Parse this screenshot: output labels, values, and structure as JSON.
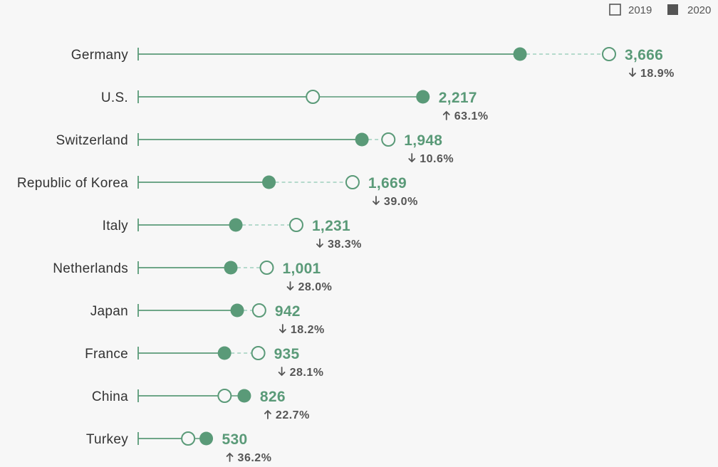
{
  "colors": {
    "accent": "#5a9a78",
    "dashed_line": "#9fd0bd",
    "legend_square_2020": "#555555",
    "background": "#f7f7f7"
  },
  "legend": [
    {
      "label": "2019",
      "symbol": "hollow-square"
    },
    {
      "label": "2020",
      "symbol": "filled-square"
    }
  ],
  "chart_data": {
    "type": "dumbbell",
    "series": [
      {
        "name": "2019",
        "marker": "hollow-circle"
      },
      {
        "name": "2020",
        "marker": "filled-circle"
      }
    ],
    "legend_position": "top-right",
    "grid": false,
    "rows": [
      {
        "country": "Germany",
        "v2019": 3666,
        "v2020": 2973,
        "label": "3,666",
        "change": "18.9%",
        "direction": "down"
      },
      {
        "country": "U.S.",
        "v2019": 1360,
        "v2020": 2217,
        "label": "2,217",
        "change": "63.1%",
        "direction": "up"
      },
      {
        "country": "Switzerland",
        "v2019": 1948,
        "v2020": 1742,
        "label": "1,948",
        "change": "10.6%",
        "direction": "down"
      },
      {
        "country": "Republic of Korea",
        "v2019": 1669,
        "v2020": 1018,
        "label": "1,669",
        "change": "39.0%",
        "direction": "down"
      },
      {
        "country": "Italy",
        "v2019": 1231,
        "v2020": 760,
        "label": "1,231",
        "change": "38.3%",
        "direction": "down"
      },
      {
        "country": "Netherlands",
        "v2019": 1001,
        "v2020": 721,
        "label": "1,001",
        "change": "28.0%",
        "direction": "down"
      },
      {
        "country": "Japan",
        "v2019": 942,
        "v2020": 771,
        "label": "942",
        "change": "18.2%",
        "direction": "down"
      },
      {
        "country": "France",
        "v2019": 935,
        "v2020": 672,
        "label": "935",
        "change": "28.1%",
        "direction": "down"
      },
      {
        "country": "China",
        "v2019": 673,
        "v2020": 826,
        "label": "826",
        "change": "22.7%",
        "direction": "up"
      },
      {
        "country": "Turkey",
        "v2019": 389,
        "v2020": 530,
        "label": "530",
        "change": "36.2%",
        "direction": "up"
      }
    ]
  }
}
